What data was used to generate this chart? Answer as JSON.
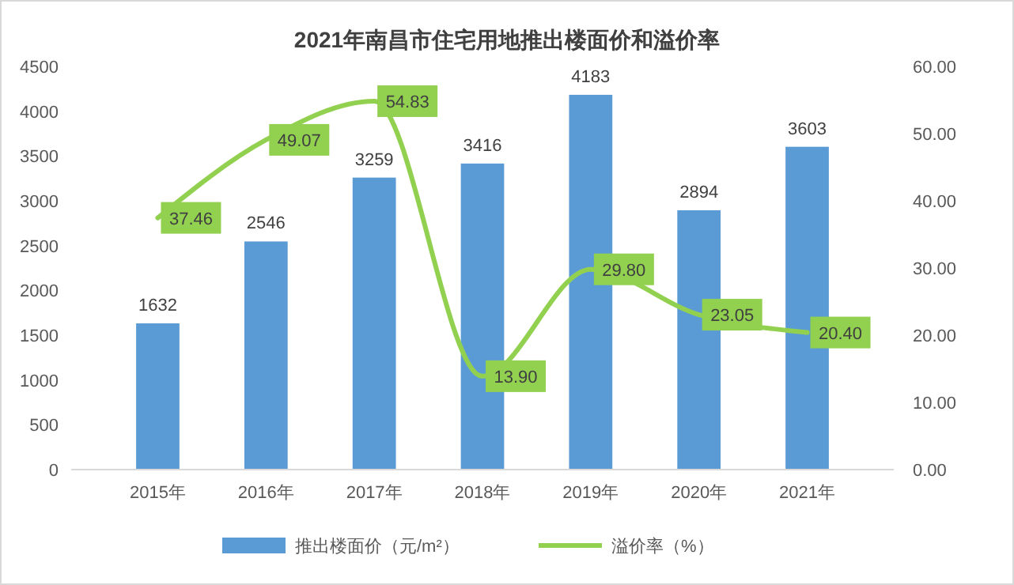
{
  "chart_data": {
    "type": "bar",
    "title": "2021年南昌市住宅用地推出楼面价和溢价率",
    "categories": [
      "2015年",
      "2016年",
      "2017年",
      "2018年",
      "2019年",
      "2020年",
      "2021年"
    ],
    "series": [
      {
        "name": "推出楼面价（元/m²）",
        "color": "#5b9bd5",
        "values": [
          1632,
          2546,
          3259,
          3416,
          4183,
          2894,
          3603
        ],
        "value_labels": [
          "1632",
          "2546",
          "3259",
          "3416",
          "4183",
          "2894",
          "3603"
        ]
      },
      {
        "name": "溢价率（%）",
        "type": "line",
        "axis": "y2",
        "color": "#92d050",
        "values": [
          37.46,
          49.07,
          54.83,
          13.9,
          29.8,
          23.05,
          20.4
        ],
        "value_labels": [
          "37.46",
          "49.07",
          "54.83",
          "13.90",
          "29.80",
          "23.05",
          "20.40"
        ]
      }
    ],
    "ylim": [
      0,
      4500
    ],
    "yticks": [
      0,
      500,
      1000,
      1500,
      2000,
      2500,
      3000,
      3500,
      4000,
      4500
    ],
    "y2lim": [
      0,
      60
    ],
    "y2ticks": [
      {
        "value": 0,
        "label": "0.00"
      },
      {
        "value": 10,
        "label": "10.00"
      },
      {
        "value": 20,
        "label": "20.00"
      },
      {
        "value": 30,
        "label": "30.00"
      },
      {
        "value": 40,
        "label": "40.00"
      },
      {
        "value": 50,
        "label": "50.00"
      },
      {
        "value": 60,
        "label": "60.00"
      }
    ],
    "grid": false,
    "legend": "bottom",
    "marker": "none",
    "line_style": "solid"
  }
}
